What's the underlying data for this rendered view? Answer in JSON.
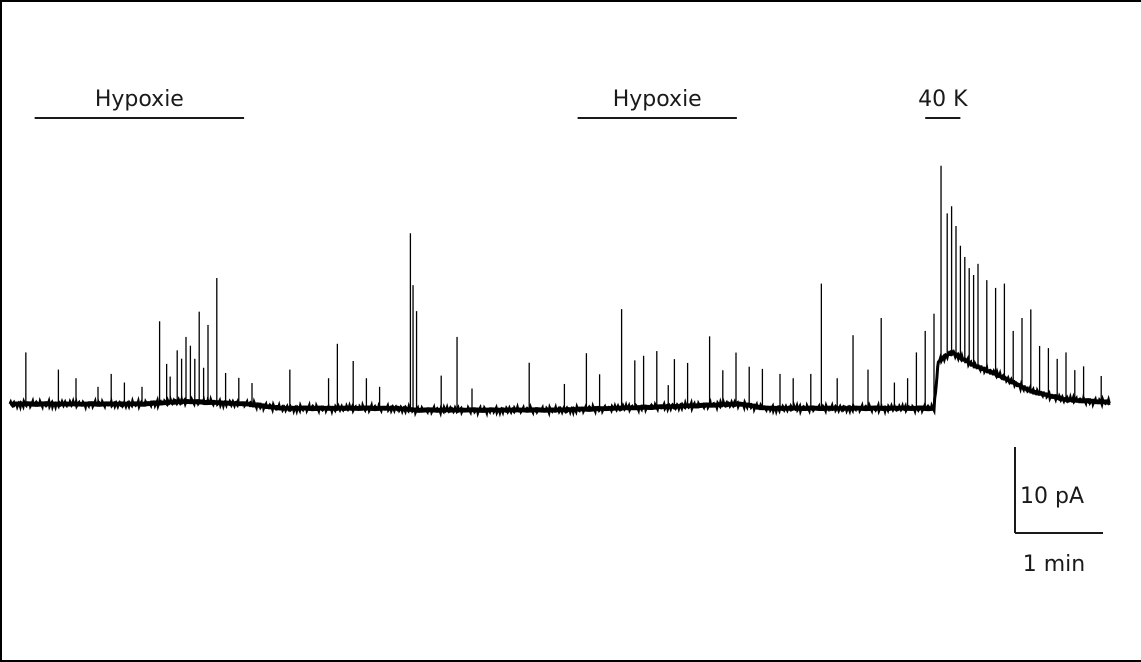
{
  "chart_data": {
    "type": "line",
    "title": "",
    "xlabel": "",
    "ylabel": "",
    "x_unit": "min",
    "y_unit": "pA",
    "xlim": [
      0,
      12.5
    ],
    "ylim": [
      -15,
      35
    ],
    "color": "#000000",
    "annotations": [
      {
        "label": "Hypoxie",
        "start": 0.28,
        "end": 2.66
      },
      {
        "label": "Hypoxie",
        "start": 6.45,
        "end": 8.26
      },
      {
        "label": "40 K",
        "start": 10.4,
        "end": 10.8
      }
    ],
    "scale_bar": {
      "y_label": "10 pA",
      "y_value": 10,
      "x_label": "1 min",
      "x_value": 1
    },
    "baseline": [
      [
        0.0,
        0.0
      ],
      [
        1.5,
        0.0
      ],
      [
        2.0,
        0.3
      ],
      [
        2.7,
        0.0
      ],
      [
        3.1,
        -0.5
      ],
      [
        4.4,
        -0.5
      ],
      [
        4.6,
        -0.7
      ],
      [
        6.2,
        -0.7
      ],
      [
        7.5,
        -0.3
      ],
      [
        8.3,
        0.0
      ],
      [
        8.6,
        -0.5
      ],
      [
        10.5,
        -0.5
      ],
      [
        10.55,
        5.0
      ],
      [
        10.7,
        6.0
      ],
      [
        10.95,
        4.5
      ],
      [
        11.2,
        3.5
      ],
      [
        11.6,
        1.5
      ],
      [
        12.0,
        0.5
      ],
      [
        12.5,
        0.2
      ]
    ],
    "events": [
      [
        0.18,
        6.0
      ],
      [
        0.55,
        4.0
      ],
      [
        0.75,
        3.0
      ],
      [
        1.0,
        2.0
      ],
      [
        1.15,
        3.5
      ],
      [
        1.3,
        2.5
      ],
      [
        1.5,
        2.0
      ],
      [
        1.7,
        9.5
      ],
      [
        1.78,
        4.5
      ],
      [
        1.82,
        3.0
      ],
      [
        1.9,
        6.0
      ],
      [
        1.95,
        5.0
      ],
      [
        2.0,
        7.5
      ],
      [
        2.05,
        6.5
      ],
      [
        2.1,
        5.0
      ],
      [
        2.15,
        10.5
      ],
      [
        2.2,
        4.0
      ],
      [
        2.25,
        9.0
      ],
      [
        2.35,
        14.5
      ],
      [
        2.45,
        3.5
      ],
      [
        2.6,
        3.0
      ],
      [
        2.75,
        2.5
      ],
      [
        3.18,
        4.5
      ],
      [
        3.62,
        3.5
      ],
      [
        3.72,
        7.5
      ],
      [
        3.9,
        5.5
      ],
      [
        4.05,
        3.5
      ],
      [
        4.2,
        2.5
      ],
      [
        4.55,
        20.5
      ],
      [
        4.58,
        14.5
      ],
      [
        4.62,
        11.5
      ],
      [
        4.9,
        4.0
      ],
      [
        5.08,
        8.5
      ],
      [
        5.25,
        2.5
      ],
      [
        5.9,
        5.5
      ],
      [
        6.3,
        3.0
      ],
      [
        6.55,
        6.5
      ],
      [
        6.7,
        4.0
      ],
      [
        6.95,
        11.5
      ],
      [
        7.1,
        5.5
      ],
      [
        7.2,
        6.0
      ],
      [
        7.35,
        6.5
      ],
      [
        7.48,
        2.5
      ],
      [
        7.55,
        5.5
      ],
      [
        7.7,
        5.0
      ],
      [
        7.95,
        8.0
      ],
      [
        8.1,
        4.0
      ],
      [
        8.25,
        6.0
      ],
      [
        8.4,
        4.5
      ],
      [
        8.55,
        4.5
      ],
      [
        8.75,
        4.0
      ],
      [
        8.9,
        3.5
      ],
      [
        9.1,
        4.0
      ],
      [
        9.22,
        14.5
      ],
      [
        9.4,
        3.5
      ],
      [
        9.58,
        8.5
      ],
      [
        9.75,
        4.5
      ],
      [
        9.9,
        10.5
      ],
      [
        10.05,
        3.0
      ],
      [
        10.2,
        3.5
      ],
      [
        10.3,
        6.5
      ],
      [
        10.4,
        9.0
      ],
      [
        10.5,
        11.0
      ],
      [
        10.58,
        22.5
      ],
      [
        10.65,
        16.5
      ],
      [
        10.7,
        17.0
      ],
      [
        10.75,
        15.0
      ],
      [
        10.8,
        13.0
      ],
      [
        10.85,
        12.0
      ],
      [
        10.9,
        11.0
      ],
      [
        10.95,
        10.5
      ],
      [
        11.0,
        12.0
      ],
      [
        11.1,
        10.5
      ],
      [
        11.2,
        10.0
      ],
      [
        11.3,
        11.0
      ],
      [
        11.4,
        6.0
      ],
      [
        11.5,
        8.0
      ],
      [
        11.6,
        9.5
      ],
      [
        11.7,
        5.5
      ],
      [
        11.8,
        5.5
      ],
      [
        11.9,
        4.5
      ],
      [
        12.0,
        5.5
      ],
      [
        12.1,
        3.5
      ],
      [
        12.2,
        4.0
      ],
      [
        12.4,
        3.0
      ]
    ]
  }
}
